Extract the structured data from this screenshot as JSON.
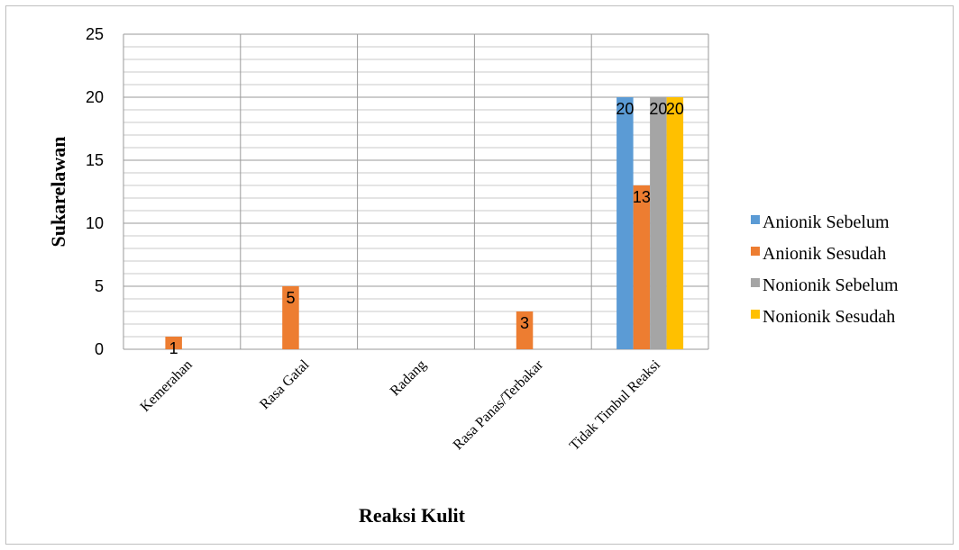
{
  "chart_data": {
    "type": "bar",
    "title": "",
    "xlabel": "Reaksi Kulit",
    "ylabel": "Sukarelawan",
    "categories": [
      "Kemerahan",
      "Rasa Gatal",
      "Radang",
      "Rasa Panas/Terbakar",
      "Tidak Timbul Reaksi"
    ],
    "ylim": [
      0,
      25
    ],
    "yticks": [
      0,
      5,
      10,
      15,
      20,
      25
    ],
    "grid": true,
    "legend_position": "right",
    "series": [
      {
        "name": "Anionik Sebelum",
        "color": "#5b9bd5",
        "values": [
          0,
          0,
          0,
          0,
          20
        ],
        "labels": [
          "",
          "",
          "",
          "",
          "20"
        ]
      },
      {
        "name": "Anionik Sesudah",
        "color": "#ed7d31",
        "values": [
          1,
          5,
          0,
          3,
          13
        ],
        "labels": [
          "1",
          "5",
          "",
          "3",
          "13"
        ]
      },
      {
        "name": "Nonionik Sebelum",
        "color": "#a5a5a5",
        "values": [
          0,
          0,
          0,
          0,
          20
        ],
        "labels": [
          "",
          "",
          "",
          "",
          "20"
        ]
      },
      {
        "name": "Nonionik Sesudah",
        "color": "#ffc000",
        "values": [
          0,
          0,
          0,
          0,
          20
        ],
        "labels": [
          "",
          "",
          "",
          "",
          "20"
        ]
      }
    ]
  }
}
